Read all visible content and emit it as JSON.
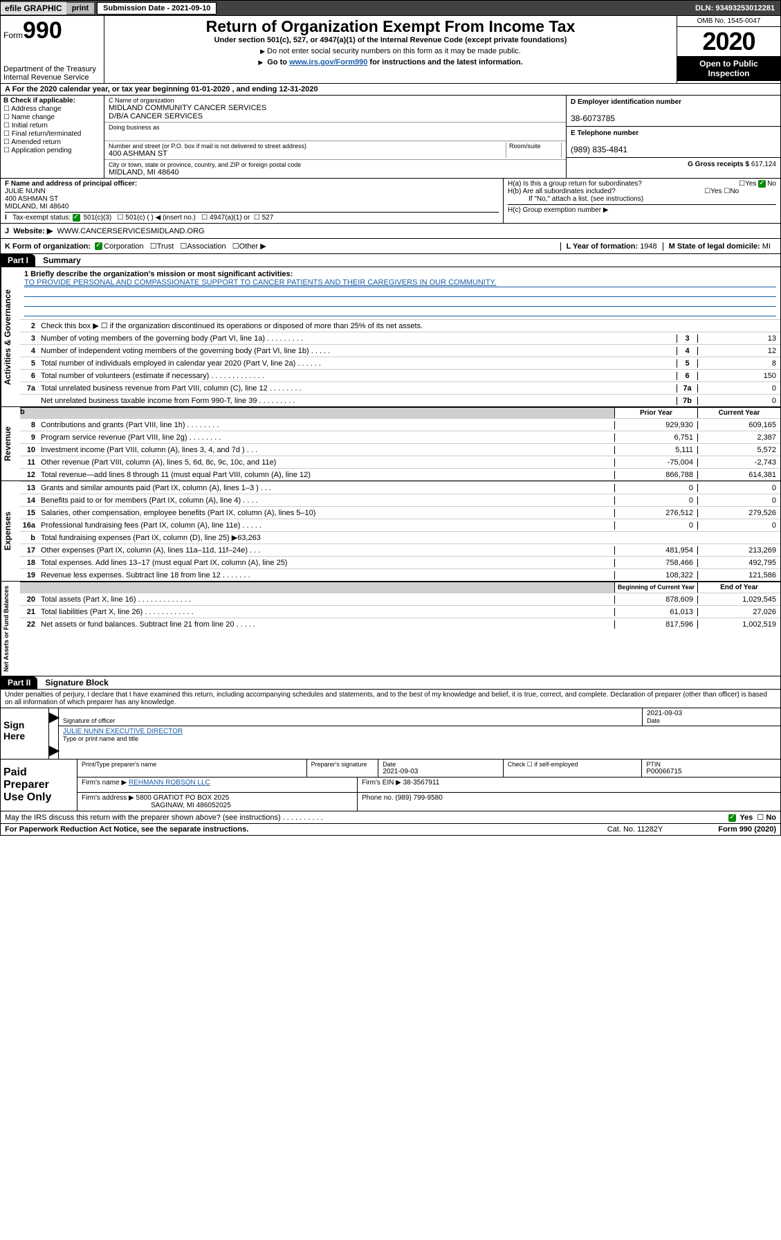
{
  "topbar": {
    "efile": "efile GRAPHIC",
    "print": "print",
    "subdate": "Submission Date - 2021-09-10",
    "dln": "DLN: 93493253012281"
  },
  "header": {
    "formword": "Form",
    "formnum": "990",
    "dept1": "Department of the Treasury",
    "dept2": "Internal Revenue Service",
    "title": "Return of Organization Exempt From Income Tax",
    "sub": "Under section 501(c), 527, or 4947(a)(1) of the Internal Revenue Code (except private foundations)",
    "note1": "Do not enter social security numbers on this form as it may be made public.",
    "note2a": "Go to ",
    "note2link": "www.irs.gov/Form990",
    "note2b": " for instructions and the latest information.",
    "omb": "OMB No. 1545-0047",
    "year": "2020",
    "open": "Open to Public Inspection"
  },
  "rowA": "A  For the 2020 calendar year, or tax year beginning 01-01-2020   , and ending 12-31-2020",
  "colB": {
    "title": "B Check if applicable:",
    "c1": "Address change",
    "c2": "Name change",
    "c3": "Initial return",
    "c4": "Final return/terminated",
    "c5": "Amended return",
    "c6": "Application pending"
  },
  "colC": {
    "namelbl": "C Name of organization",
    "name1": "MIDLAND COMMUNITY CANCER SERVICES",
    "name2": "D/B/A CANCER SERVICES",
    "dbalbl": "Doing business as",
    "addrlbl": "Number and street (or P.O. box if mail is not delivered to street address)",
    "roomlbl": "Room/suite",
    "addr": "400 ASHMAN ST",
    "citylbl": "City or town, state or province, country, and ZIP or foreign postal code",
    "city": "MIDLAND, MI  48640"
  },
  "colD": {
    "einlbl": "D Employer identification number",
    "ein": "38-6073785",
    "tellbl": "E Telephone number",
    "tel": "(989) 835-4841",
    "grosslbl": "G Gross receipts $",
    "gross": "617,124"
  },
  "officer": {
    "flbl": "F  Name and address of principal officer:",
    "name": "JULIE NUNN",
    "addr1": "400 ASHMAN ST",
    "addr2": "MIDLAND, MI  48640"
  },
  "H": {
    "ha": "H(a)  Is this a group return for subordinates?",
    "hb": "H(b)  Are all subordinates included?",
    "hbnote": "If \"No,\" attach a list. (see instructions)",
    "hc": "H(c)  Group exemption number ▶",
    "yes": "Yes",
    "no": "No"
  },
  "I": {
    "lbl": "Tax-exempt status:",
    "o1": "501(c)(3)",
    "o2": "501(c) (   ) ◀ (insert no.)",
    "o3": "4947(a)(1) or",
    "o4": "527"
  },
  "J": {
    "lbl": "Website: ▶",
    "val": "WWW.CANCERSERVICESMIDLAND.ORG"
  },
  "K": {
    "lbl": "K Form of organization:",
    "o1": "Corporation",
    "o2": "Trust",
    "o3": "Association",
    "o4": "Other ▶",
    "Llbl": "L Year of formation:",
    "Lval": "1948",
    "Mlbl": "M State of legal domicile:",
    "Mval": "MI"
  },
  "part1": {
    "hdr": "Part I",
    "title": "Summary",
    "q1": "1  Briefly describe the organization's mission or most significant activities:",
    "mission": "TO PROVIDE PERSONAL AND COMPASSIONATE SUPPORT TO CANCER PATIENTS AND THEIR CAREGIVERS IN OUR COMMUNITY.",
    "q2": "Check this box ▶ ☐  if the organization discontinued its operations or disposed of more than 25% of its net assets.",
    "lines_gov": [
      {
        "n": "3",
        "d": "Number of voting members of the governing body (Part VI, line 1a)   .   .   .   .   .   .   .   .   .",
        "b": "3",
        "v": "13"
      },
      {
        "n": "4",
        "d": "Number of independent voting members of the governing body (Part VI, line 1b)   .   .   .   .   .",
        "b": "4",
        "v": "12"
      },
      {
        "n": "5",
        "d": "Total number of individuals employed in calendar year 2020 (Part V, line 2a)   .   .   .   .   .   .",
        "b": "5",
        "v": "8"
      },
      {
        "n": "6",
        "d": "Total number of volunteers (estimate if necessary)   .   .   .   .   .   .   .   .   .   .   .   .   .",
        "b": "6",
        "v": "150"
      },
      {
        "n": "7a",
        "d": "Total unrelated business revenue from Part VIII, column (C), line 12   .   .   .   .   .   .   .   .",
        "b": "7a",
        "v": "0"
      },
      {
        "n": "",
        "d": "Net unrelated business taxable income from Form 990-T, line 39   .   .   .   .   .   .   .   .   .",
        "b": "7b",
        "v": "0"
      }
    ],
    "pyhdr": "Prior Year",
    "cyhdr": "Current Year",
    "lines_rev": [
      {
        "n": "8",
        "d": "Contributions and grants (Part VIII, line 1h)   .   .   .   .   .   .   .   .",
        "py": "929,930",
        "cy": "609,165"
      },
      {
        "n": "9",
        "d": "Program service revenue (Part VIII, line 2g)   .   .   .   .   .   .   .   .",
        "py": "6,751",
        "cy": "2,387"
      },
      {
        "n": "10",
        "d": "Investment income (Part VIII, column (A), lines 3, 4, and 7d )   .   .   .",
        "py": "5,111",
        "cy": "5,572"
      },
      {
        "n": "11",
        "d": "Other revenue (Part VIII, column (A), lines 5, 6d, 8c, 9c, 10c, and 11e)",
        "py": "-75,004",
        "cy": "-2,743"
      },
      {
        "n": "12",
        "d": "Total revenue—add lines 8 through 11 (must equal Part VIII, column (A), line 12)",
        "py": "866,788",
        "cy": "614,381"
      }
    ],
    "lines_exp": [
      {
        "n": "13",
        "d": "Grants and similar amounts paid (Part IX, column (A), lines 1–3 )   .   .   .",
        "py": "0",
        "cy": "0"
      },
      {
        "n": "14",
        "d": "Benefits paid to or for members (Part IX, column (A), line 4)   .   .   .   .",
        "py": "0",
        "cy": "0"
      },
      {
        "n": "15",
        "d": "Salaries, other compensation, employee benefits (Part IX, column (A), lines 5–10)",
        "py": "276,512",
        "cy": "279,526"
      },
      {
        "n": "16a",
        "d": "Professional fundraising fees (Part IX, column (A), line 11e)   .   .   .   .   .",
        "py": "0",
        "cy": "0"
      },
      {
        "n": "b",
        "d": "Total fundraising expenses (Part IX, column (D), line 25) ▶63,263",
        "py": "",
        "cy": "",
        "grey": true
      },
      {
        "n": "17",
        "d": "Other expenses (Part IX, column (A), lines 11a–11d, 11f–24e)   .   .   .",
        "py": "481,954",
        "cy": "213,269"
      },
      {
        "n": "18",
        "d": "Total expenses. Add lines 13–17 (must equal Part IX, column (A), line 25)",
        "py": "758,466",
        "cy": "492,795"
      },
      {
        "n": "19",
        "d": "Revenue less expenses. Subtract line 18 from line 12   .   .   .   .   .   .   .",
        "py": "108,322",
        "cy": "121,586"
      }
    ],
    "bcyhdr": "Beginning of Current Year",
    "eoyhdr": "End of Year",
    "lines_net": [
      {
        "n": "20",
        "d": "Total assets (Part X, line 16)   .   .   .   .   .   .   .   .   .   .   .   .   .",
        "py": "878,609",
        "cy": "1,029,545"
      },
      {
        "n": "21",
        "d": "Total liabilities (Part X, line 26)   .   .   .   .   .   .   .   .   .   .   .   .",
        "py": "61,013",
        "cy": "27,026"
      },
      {
        "n": "22",
        "d": "Net assets or fund balances. Subtract line 21 from line 20   .   .   .   .   .",
        "py": "817,596",
        "cy": "1,002,519"
      }
    ],
    "vlabels": {
      "gov": "Activities & Governance",
      "rev": "Revenue",
      "exp": "Expenses",
      "net": "Net Assets or Fund Balances"
    }
  },
  "part2": {
    "hdr": "Part II",
    "title": "Signature Block",
    "decl": "Under penalties of perjury, I declare that I have examined this return, including accompanying schedules and statements, and to the best of my knowledge and belief, it is true, correct, and complete. Declaration of preparer (other than officer) is based on all information of which preparer has any knowledge."
  },
  "sign": {
    "left1": "Sign",
    "left2": "Here",
    "date": "2021-09-03",
    "siglbl": "Signature of officer",
    "datelbl": "Date",
    "name": "JULIE NUNN  EXECUTIVE DIRECTOR",
    "namelbl": "Type or print name and title"
  },
  "prep": {
    "left1": "Paid",
    "left2": "Preparer",
    "left3": "Use Only",
    "h1": "Print/Type preparer's name",
    "h2": "Preparer's signature",
    "h3": "Date",
    "h4": "Check ☐  if self-employed",
    "h5": "PTIN",
    "date": "2021-09-03",
    "ptin": "P00066715",
    "firmlbl": "Firm's name   ▶",
    "firm": "REHMANN ROBSON LLC",
    "einlbl": "Firm's EIN ▶",
    "ein": "38-3567911",
    "addrlbl": "Firm's address ▶",
    "addr1": "5800 GRATIOT PO BOX 2025",
    "addr2": "SAGINAW, MI  486052025",
    "phonelbl": "Phone no.",
    "phone": "(989) 799-9580"
  },
  "discuss": "May the IRS discuss this return with the preparer shown above? (see instructions)   .   .   .   .   .   .   .   .   .   .",
  "footer": {
    "left": "For Paperwork Reduction Act Notice, see the separate instructions.",
    "mid": "Cat. No. 11282Y",
    "right": "Form 990 (2020)"
  }
}
